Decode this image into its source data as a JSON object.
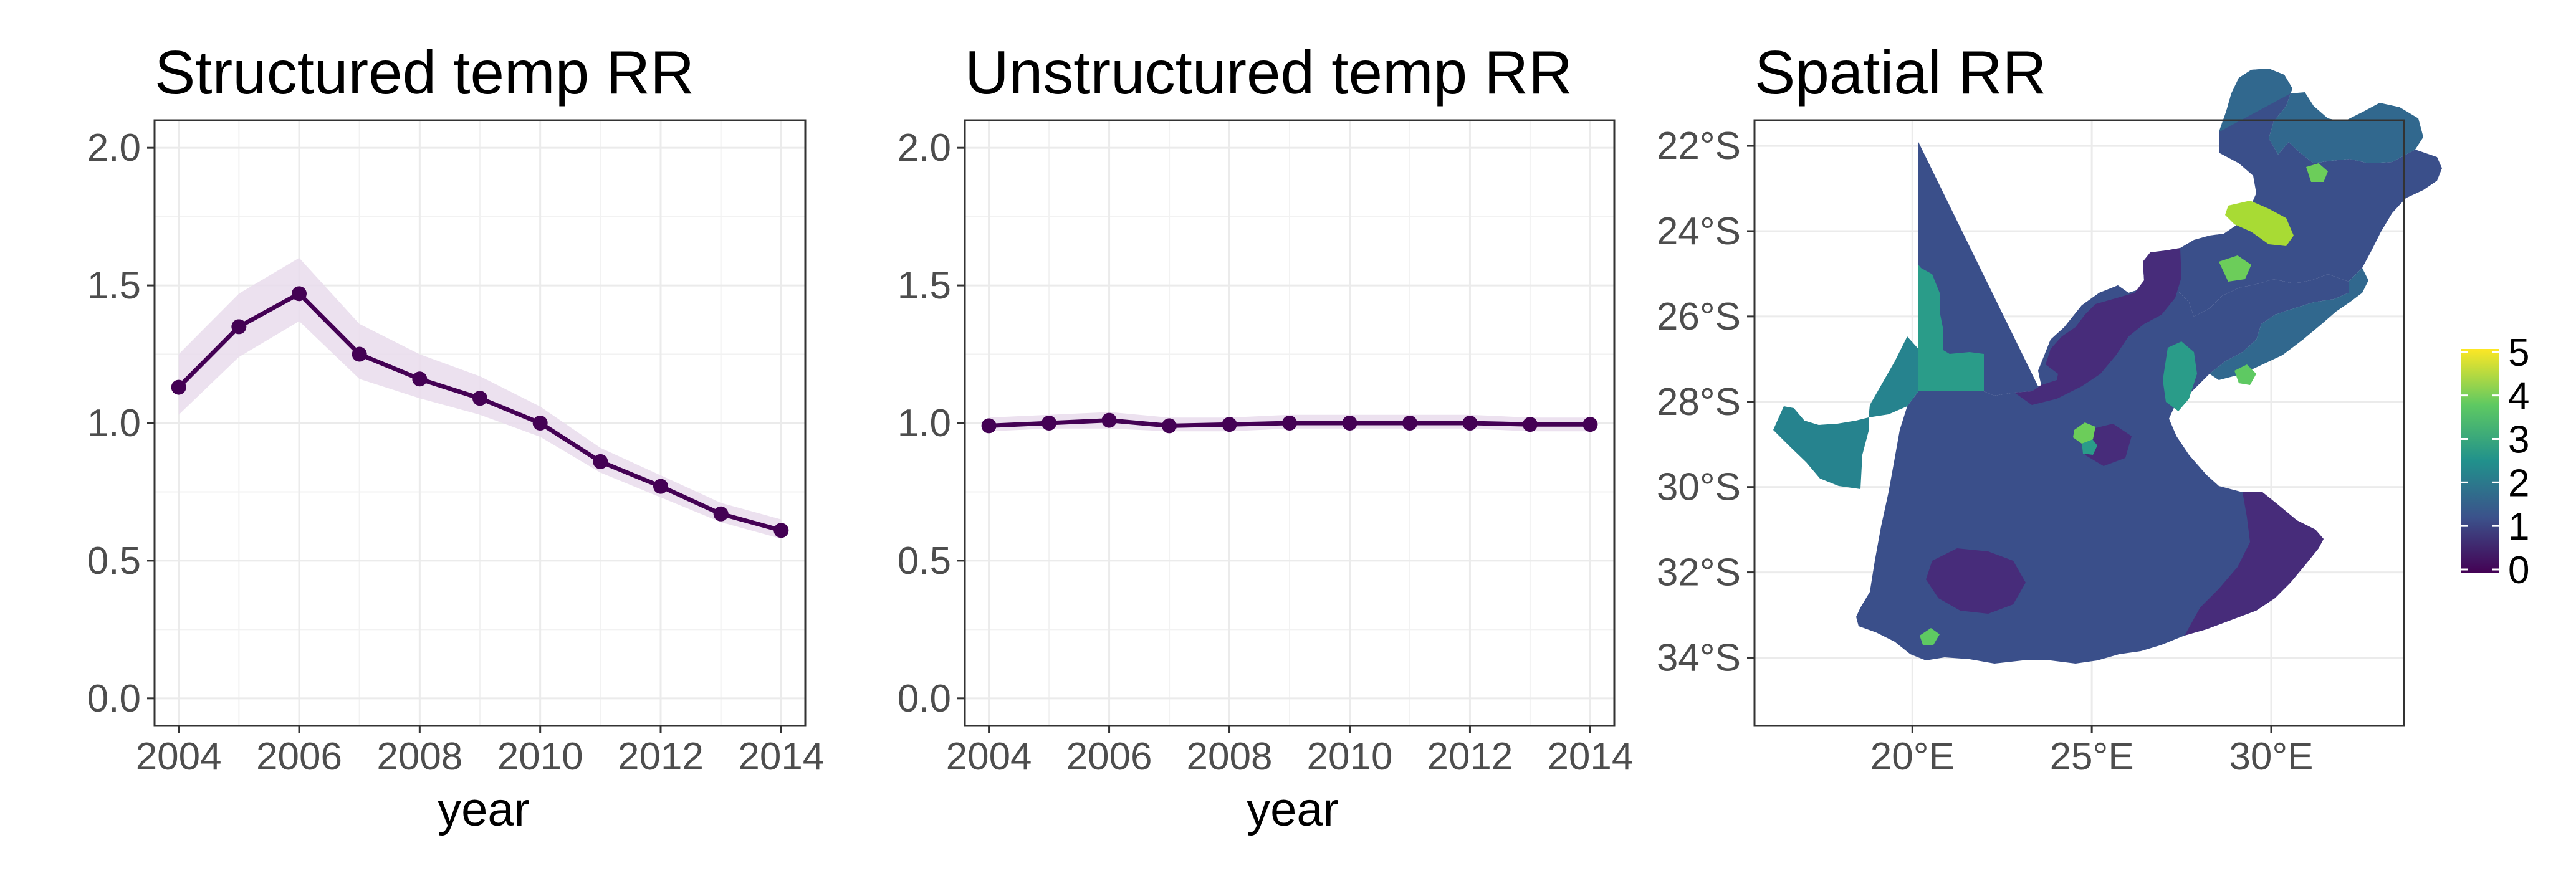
{
  "chart_data": [
    {
      "type": "line",
      "title": "Structured temp RR",
      "xlabel": "year",
      "ylabel": "",
      "x": [
        2004,
        2005,
        2006,
        2007,
        2008,
        2009,
        2010,
        2011,
        2012,
        2013,
        2014
      ],
      "series": [
        {
          "values": [
            1.13,
            1.35,
            1.47,
            1.25,
            1.16,
            1.09,
            1.0,
            0.86,
            0.77,
            0.67,
            0.61
          ],
          "lower": [
            1.03,
            1.24,
            1.37,
            1.16,
            1.09,
            1.03,
            0.95,
            0.82,
            0.73,
            0.64,
            0.58
          ],
          "upper": [
            1.25,
            1.47,
            1.6,
            1.36,
            1.25,
            1.17,
            1.06,
            0.91,
            0.81,
            0.71,
            0.65
          ]
        }
      ],
      "xlim": [
        2003.6,
        2014.4
      ],
      "ylim": [
        -0.1,
        2.1
      ],
      "xticks": [
        "2004",
        "2006",
        "2008",
        "2010",
        "2012",
        "2014"
      ],
      "yticks": [
        "0.0",
        "0.5",
        "1.0",
        "1.5",
        "2.0"
      ],
      "grid": true,
      "colors": {
        "line": "#440154",
        "band": "#e9dcec"
      }
    },
    {
      "type": "line",
      "title": "Unstructured temp RR",
      "xlabel": "year",
      "ylabel": "",
      "x": [
        2004,
        2005,
        2006,
        2007,
        2008,
        2009,
        2010,
        2011,
        2012,
        2013,
        2014
      ],
      "series": [
        {
          "values": [
            0.99,
            1.0,
            1.01,
            0.99,
            0.995,
            1.0,
            1.0,
            1.0,
            1.0,
            0.995,
            0.995
          ],
          "lower": [
            0.97,
            0.98,
            0.98,
            0.97,
            0.97,
            0.98,
            0.98,
            0.98,
            0.98,
            0.97,
            0.97
          ],
          "upper": [
            1.02,
            1.03,
            1.04,
            1.02,
            1.02,
            1.03,
            1.03,
            1.03,
            1.03,
            1.02,
            1.02
          ]
        }
      ],
      "xlim": [
        2003.6,
        2014.4
      ],
      "ylim": [
        -0.1,
        2.1
      ],
      "xticks": [
        "2004",
        "2006",
        "2008",
        "2010",
        "2012",
        "2014"
      ],
      "yticks": [
        "0.0",
        "0.5",
        "1.0",
        "1.5",
        "2.0"
      ],
      "grid": true,
      "colors": {
        "line": "#440154",
        "band": "#e9dcec"
      }
    },
    {
      "type": "heatmap",
      "title": "Spatial RR",
      "xlabel": "",
      "ylabel": "",
      "xlim": [
        15.6,
        33.7
      ],
      "ylim": [
        -35.6,
        -21.4
      ],
      "xticks": [
        "20°E",
        "25°E",
        "30°E"
      ],
      "xtick_values": [
        20,
        25,
        30
      ],
      "yticks": [
        "22°S",
        "24°S",
        "26°S",
        "28°S",
        "30°S",
        "32°S",
        "34°S"
      ],
      "ytick_values": [
        -22,
        -24,
        -26,
        -28,
        -30,
        -32,
        -34
      ],
      "legend": {
        "position": "right",
        "range": [
          0,
          5
        ],
        "ticks": [
          "0",
          "1",
          "2",
          "3",
          "4",
          "5"
        ],
        "colors": [
          "#440154",
          "#3b528b",
          "#21918c",
          "#5ec962",
          "#fde725"
        ]
      },
      "grid": true,
      "region_colors": {
        "main": "#3a4f8a",
        "north": "#31688e",
        "dark": "#472c7a",
        "teal": "#26838e",
        "greenteal": "#2a9c89",
        "green": "#6ccd5a",
        "yellowgreen": "#a8db34"
      }
    }
  ]
}
